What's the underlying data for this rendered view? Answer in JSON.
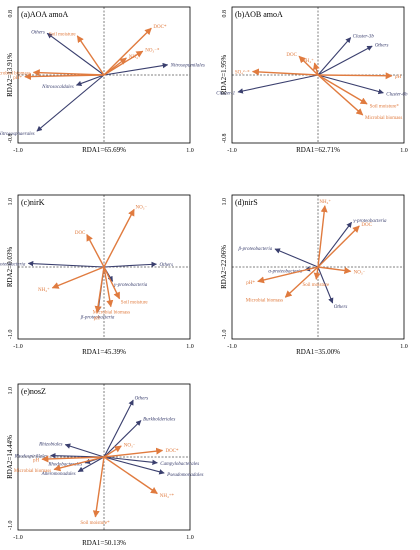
{
  "colors": {
    "env": "#e07b3f",
    "taxa": "#3a3f6e",
    "axis": "#000000"
  },
  "chart_data": [
    {
      "type": "rda_biplot",
      "panel": "(a)AOA amoA",
      "xlabel": "RDA1=65.69%",
      "ylabel": "RDA2=13.91%",
      "xlim": [
        -1.0,
        1.0
      ],
      "ylim": [
        -0.8,
        0.8
      ],
      "xticks": [
        "-1.0",
        "1.0"
      ],
      "yticks": [
        "-0.8",
        "0.8"
      ],
      "vectors": [
        {
          "label": "Others",
          "kind": "taxa",
          "x": -0.66,
          "y": 0.49
        },
        {
          "label": "Nitrosopumilales",
          "kind": "taxa",
          "x": 0.74,
          "y": 0.12
        },
        {
          "label": "Nitrosocaldales",
          "kind": "taxa",
          "x": -0.32,
          "y": -0.12
        },
        {
          "label": "Nitrososphaerales",
          "kind": "taxa",
          "x": -0.78,
          "y": -0.66
        },
        {
          "label": "Soil moisture",
          "kind": "env",
          "x": -0.31,
          "y": 0.46
        },
        {
          "label": "NH₄⁺",
          "kind": "env",
          "x": 0.26,
          "y": 0.2
        },
        {
          "label": "DOC*",
          "kind": "env",
          "x": 0.55,
          "y": 0.55
        },
        {
          "label": "NO₃⁻*",
          "kind": "env",
          "x": 0.45,
          "y": 0.28
        },
        {
          "label": "Microbial biomass",
          "kind": "env",
          "x": -0.82,
          "y": 0.03
        },
        {
          "label": "pH*",
          "kind": "env",
          "x": -0.92,
          "y": -0.02
        }
      ]
    },
    {
      "type": "rda_biplot",
      "panel": "(b)AOB amoA",
      "xlabel": "RDA1=62.71%",
      "ylabel": "RDA2=1.95%",
      "xlim": [
        -1.0,
        1.0
      ],
      "ylim": [
        -0.8,
        0.8
      ],
      "xticks": [
        "-1.0",
        "1.0"
      ],
      "yticks": [
        "-0.8",
        "0.8"
      ],
      "vectors": [
        {
          "label": "Cluster-3b",
          "kind": "taxa",
          "x": 0.38,
          "y": 0.44
        },
        {
          "label": "Others",
          "kind": "taxa",
          "x": 0.63,
          "y": 0.34
        },
        {
          "label": "Cluster-1",
          "kind": "taxa",
          "x": -0.93,
          "y": -0.2
        },
        {
          "label": "Cluster-6b",
          "kind": "taxa",
          "x": 0.76,
          "y": -0.21
        },
        {
          "label": "SO₄²⁻*",
          "kind": "env",
          "x": -0.76,
          "y": 0.04
        },
        {
          "label": "DOC",
          "kind": "env",
          "x": -0.22,
          "y": 0.22
        },
        {
          "label": "NH₄⁺",
          "kind": "env",
          "x": -0.04,
          "y": 0.14
        },
        {
          "label": "pH",
          "kind": "env",
          "x": 0.86,
          "y": -0.01
        },
        {
          "label": "Soil moisture*",
          "kind": "env",
          "x": 0.57,
          "y": -0.34
        },
        {
          "label": "Microbial biomass",
          "kind": "env",
          "x": 0.52,
          "y": -0.47
        }
      ]
    },
    {
      "type": "rda_biplot",
      "panel": "(c)nirK",
      "xlabel": "RDA1=45.39%",
      "ylabel": "RDA2=0.03%",
      "xlim": [
        -1.0,
        1.0
      ],
      "ylim": [
        -1.0,
        1.0
      ],
      "xticks": [
        "-1.0",
        "1.0"
      ],
      "yticks": [
        "-1.0",
        "1.0"
      ],
      "vectors": [
        {
          "label": "α-proteobacteria",
          "kind": "taxa",
          "x": -0.88,
          "y": 0.05
        },
        {
          "label": "Others",
          "kind": "taxa",
          "x": 0.61,
          "y": 0.04
        },
        {
          "label": "γ-proteobacteria",
          "kind": "taxa",
          "x": 0.1,
          "y": -0.2
        },
        {
          "label": "β-proteobacteria",
          "kind": "taxa",
          "x": -0.07,
          "y": -0.62
        },
        {
          "label": "NO₃⁻",
          "kind": "env",
          "x": 0.35,
          "y": 0.8
        },
        {
          "label": "DOC",
          "kind": "env",
          "x": -0.2,
          "y": 0.45
        },
        {
          "label": "NH₄⁺",
          "kind": "env",
          "x": -0.6,
          "y": -0.29
        },
        {
          "label": "Soil moisture",
          "kind": "env",
          "x": 0.18,
          "y": -0.44
        },
        {
          "label": "Microbial biomass",
          "kind": "env",
          "x": 0.08,
          "y": -0.55
        },
        {
          "label": "pH",
          "kind": "env",
          "x": -0.08,
          "y": -0.63
        }
      ]
    },
    {
      "type": "rda_biplot",
      "panel": "(d)nirS",
      "xlabel": "RDA1=35.00%",
      "ylabel": "RDA2=22.06%",
      "xlim": [
        -1.0,
        1.0
      ],
      "ylim": [
        -1.0,
        1.0
      ],
      "xticks": [
        "-1.0",
        "1.0"
      ],
      "yticks": [
        "-1.0",
        "1.0"
      ],
      "vectors": [
        {
          "label": "γ-proteobacteria",
          "kind": "taxa",
          "x": 0.39,
          "y": 0.62
        },
        {
          "label": "β-proteobacteria",
          "kind": "taxa",
          "x": -0.5,
          "y": 0.25
        },
        {
          "label": "α-proteobacteria",
          "kind": "taxa",
          "x": -0.15,
          "y": -0.04
        },
        {
          "label": "Others",
          "kind": "taxa",
          "x": 0.17,
          "y": -0.5
        },
        {
          "label": "NH₄⁺",
          "kind": "env",
          "x": 0.08,
          "y": 0.85
        },
        {
          "label": "DOC",
          "kind": "env",
          "x": 0.48,
          "y": 0.57
        },
        {
          "label": "NO₃⁻",
          "kind": "env",
          "x": 0.38,
          "y": -0.06
        },
        {
          "label": "pH*",
          "kind": "env",
          "x": -0.7,
          "y": -0.2
        },
        {
          "label": "Soil moisture",
          "kind": "env",
          "x": -0.02,
          "y": -0.17
        },
        {
          "label": "Microbial biomass",
          "kind": "env",
          "x": -0.38,
          "y": -0.42
        }
      ]
    },
    {
      "type": "rda_biplot",
      "panel": "(e)nosZ",
      "xlabel": "RDA1=50.13%",
      "ylabel": "RDA2=14.44%",
      "xlim": [
        -1.0,
        1.0
      ],
      "ylim": [
        -1.0,
        1.0
      ],
      "xticks": [
        "-1.0",
        "1.0"
      ],
      "yticks": [
        "-1.0",
        "1.0"
      ],
      "vectors": [
        {
          "label": "Others",
          "kind": "taxa",
          "x": 0.34,
          "y": 0.78
        },
        {
          "label": "Burkholderiales",
          "kind": "taxa",
          "x": 0.43,
          "y": 0.5
        },
        {
          "label": "Rhizobiales",
          "kind": "taxa",
          "x": -0.45,
          "y": 0.17
        },
        {
          "label": "Rhodospirillales",
          "kind": "taxa",
          "x": -0.62,
          "y": 0.02
        },
        {
          "label": "Rhodobacterales",
          "kind": "taxa",
          "x": -0.22,
          "y": -0.08
        },
        {
          "label": "Alteromonadales",
          "kind": "taxa",
          "x": -0.3,
          "y": -0.2
        },
        {
          "label": "Campylobacterales",
          "kind": "taxa",
          "x": 0.62,
          "y": -0.08
        },
        {
          "label": "Pseudomonadales",
          "kind": "taxa",
          "x": 0.7,
          "y": -0.22
        },
        {
          "label": "NO₃⁻",
          "kind": "env",
          "x": 0.2,
          "y": 0.15
        },
        {
          "label": "DOC*",
          "kind": "env",
          "x": 0.68,
          "y": 0.09
        },
        {
          "label": "pH",
          "kind": "env",
          "x": -0.72,
          "y": -0.03
        },
        {
          "label": "Microbial biomass",
          "kind": "env",
          "x": -0.58,
          "y": -0.17
        },
        {
          "label": "NH₄⁺*",
          "kind": "env",
          "x": 0.62,
          "y": -0.5
        },
        {
          "label": "Soil moisture*",
          "kind": "env",
          "x": -0.1,
          "y": -0.82
        }
      ]
    }
  ]
}
